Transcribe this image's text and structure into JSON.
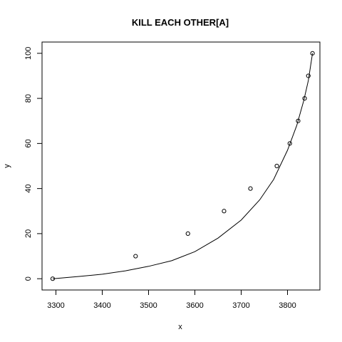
{
  "chart_data": {
    "type": "scatter",
    "title": "KILL EACH OTHER[A]",
    "xlabel": "x",
    "ylabel": "y",
    "xlim": [
      3270,
      3870
    ],
    "ylim": [
      -5,
      105
    ],
    "x_ticks": [
      3300,
      3400,
      3500,
      3600,
      3700,
      3800
    ],
    "y_ticks": [
      0,
      20,
      40,
      60,
      80,
      100
    ],
    "grid": false,
    "legend": "none",
    "points": [
      {
        "x": 3293,
        "y": 0
      },
      {
        "x": 3472,
        "y": 10
      },
      {
        "x": 3585,
        "y": 20
      },
      {
        "x": 3663,
        "y": 30
      },
      {
        "x": 3720,
        "y": 40
      },
      {
        "x": 3777,
        "y": 50
      },
      {
        "x": 3805,
        "y": 60
      },
      {
        "x": 3823,
        "y": 70
      },
      {
        "x": 3837,
        "y": 80
      },
      {
        "x": 3845,
        "y": 90
      },
      {
        "x": 3854,
        "y": 100
      }
    ],
    "fitted_curve": [
      {
        "x": 3293,
        "y": 0
      },
      {
        "x": 3350,
        "y": 1
      },
      {
        "x": 3400,
        "y": 2
      },
      {
        "x": 3450,
        "y": 3.5
      },
      {
        "x": 3500,
        "y": 5.5
      },
      {
        "x": 3550,
        "y": 8
      },
      {
        "x": 3600,
        "y": 12
      },
      {
        "x": 3650,
        "y": 18
      },
      {
        "x": 3700,
        "y": 26
      },
      {
        "x": 3740,
        "y": 35
      },
      {
        "x": 3770,
        "y": 44
      },
      {
        "x": 3800,
        "y": 57
      },
      {
        "x": 3820,
        "y": 68
      },
      {
        "x": 3835,
        "y": 79
      },
      {
        "x": 3845,
        "y": 88
      },
      {
        "x": 3854,
        "y": 100
      }
    ]
  }
}
